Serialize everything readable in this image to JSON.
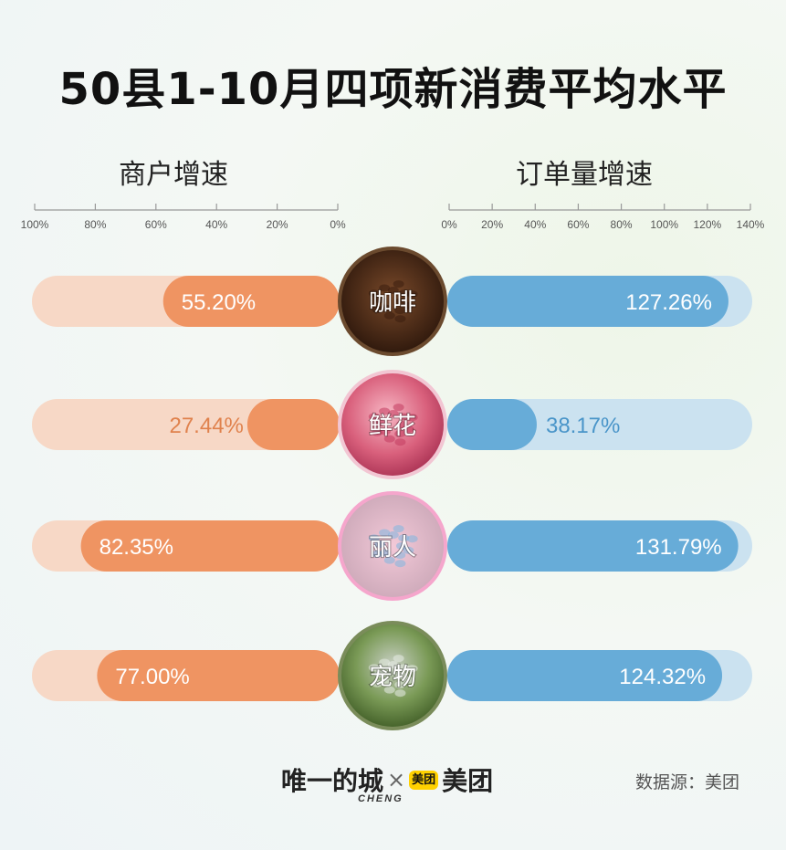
{
  "title": "50县1-10月四项新消费平均水平",
  "footer": {
    "brand_left": "唯一的城",
    "separator": "×",
    "badge": "美团",
    "brand_right": "美团",
    "brand_sub": "CHENG",
    "source": "数据源：美团"
  },
  "colors": {
    "left_bar": "#ef9462",
    "left_track": "#f7d8c6",
    "right_bar": "#67acd8",
    "right_track": "#cbe2f0",
    "left_text_inside": "#ffffff",
    "left_text_outside": "#e0824d",
    "right_text_inside": "#ffffff",
    "right_text_outside": "#4a95c9"
  },
  "chart_data": {
    "type": "bar",
    "layout": "butterfly",
    "categories": [
      "咖啡",
      "鲜花",
      "丽人",
      "宠物"
    ],
    "icons": [
      "coffee-beans-icon",
      "flowers-icon",
      "nail-art-icon",
      "dog-icon"
    ],
    "left": {
      "title": "商户增速",
      "ticks": [
        "100%",
        "80%",
        "60%",
        "40%",
        "20%",
        "0%"
      ],
      "range": [
        0,
        100
      ],
      "values": [
        55.2,
        27.44,
        82.35,
        77.0
      ],
      "labels": [
        "55.20%",
        "27.44%",
        "82.35%",
        "77.00%"
      ]
    },
    "right": {
      "title": "订单量增速",
      "ticks": [
        "0%",
        "20%",
        "40%",
        "60%",
        "80%",
        "100%",
        "120%",
        "140%"
      ],
      "range": [
        0,
        140
      ],
      "values": [
        127.26,
        38.17,
        131.79,
        124.32
      ],
      "labels": [
        "127.26%",
        "38.17%",
        "131.79%",
        "124.32%"
      ]
    }
  }
}
